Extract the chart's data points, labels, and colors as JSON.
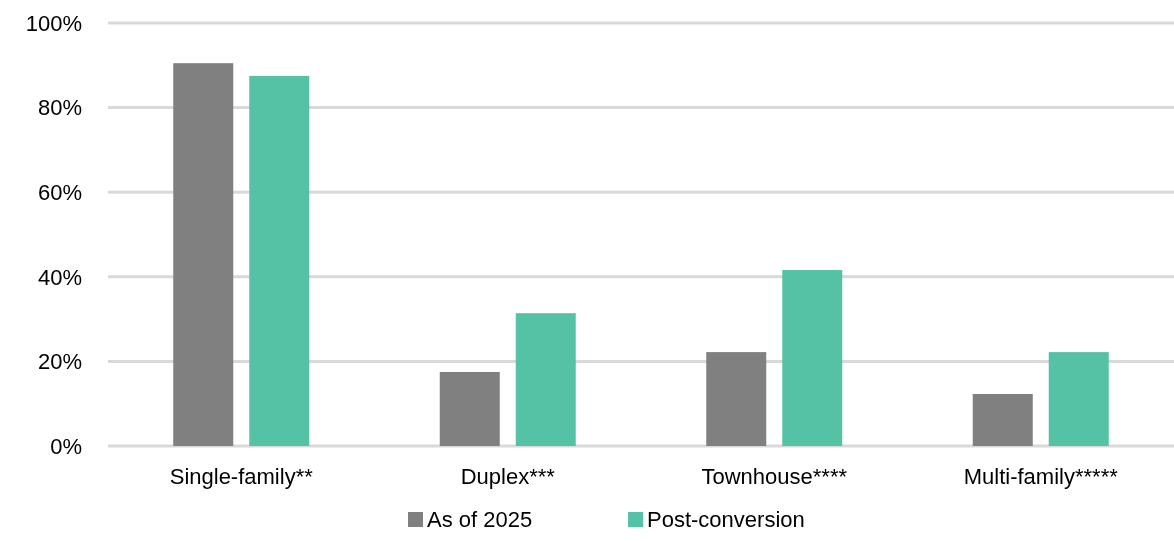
{
  "chart_data": {
    "type": "bar",
    "categories": [
      "Single-family**",
      "Duplex***",
      "Townhouse****",
      "Multi-family*****"
    ],
    "series": [
      {
        "name": "As of 2025",
        "color": "#808080",
        "values": [
          90.5,
          17.5,
          22.2,
          12.3
        ]
      },
      {
        "name": "Post-conversion",
        "color": "#55c2a6",
        "values": [
          87.5,
          31.4,
          41.6,
          22.2
        ]
      }
    ],
    "ylim": [
      0,
      100
    ],
    "yticks": [
      {
        "value": 0,
        "label": "0%"
      },
      {
        "value": 20,
        "label": "20%"
      },
      {
        "value": 40,
        "label": "40%"
      },
      {
        "value": 60,
        "label": "60%"
      },
      {
        "value": 80,
        "label": "80%"
      },
      {
        "value": 100,
        "label": "100%"
      }
    ],
    "grid": "y",
    "legend": "bottom"
  }
}
